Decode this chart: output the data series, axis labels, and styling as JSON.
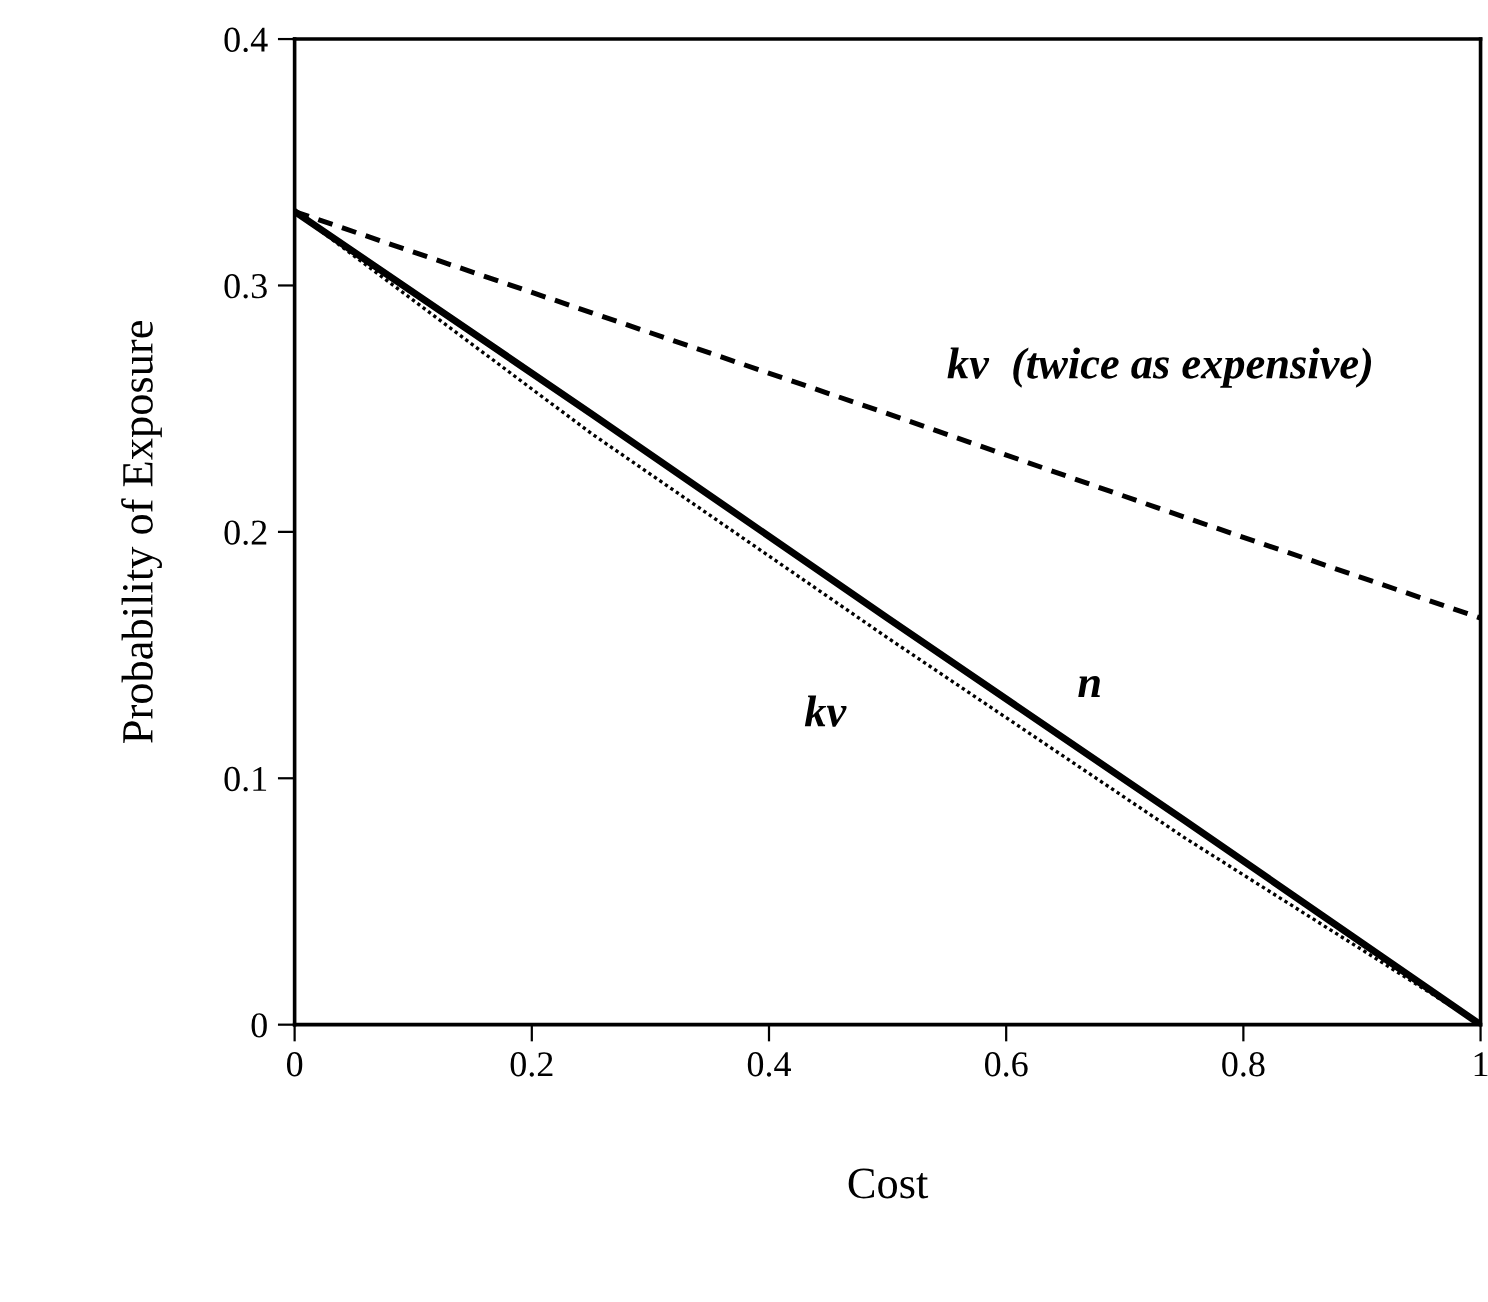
{
  "chart_data": {
    "type": "line",
    "xlabel": "Cost",
    "ylabel": "Probability of Exposure",
    "x": [
      0,
      0.25,
      0.5,
      0.75,
      1
    ],
    "series": [
      {
        "name": "n",
        "color": "#000000",
        "line_style": "solid",
        "values": [
          0.33,
          0.248,
          0.165,
          0.083,
          0
        ]
      },
      {
        "name": "kv",
        "color": "#000000",
        "line_style": "dotted",
        "values": [
          0.33,
          0.24,
          0.157,
          0.076,
          0
        ]
      },
      {
        "name": "kv  (twice as expensive)",
        "color": "#000000",
        "line_style": "dashed",
        "values": [
          0.33,
          0.289,
          0.248,
          0.206,
          0.165
        ]
      }
    ],
    "xlim": [
      0,
      1
    ],
    "ylim": [
      0,
      0.4
    ],
    "xticks": [
      0,
      0.2,
      0.4,
      0.6,
      0.8,
      1
    ],
    "yticks": [
      0,
      0.1,
      0.2,
      0.3,
      0.4
    ],
    "grid": false,
    "legend": false,
    "marker": "none"
  }
}
